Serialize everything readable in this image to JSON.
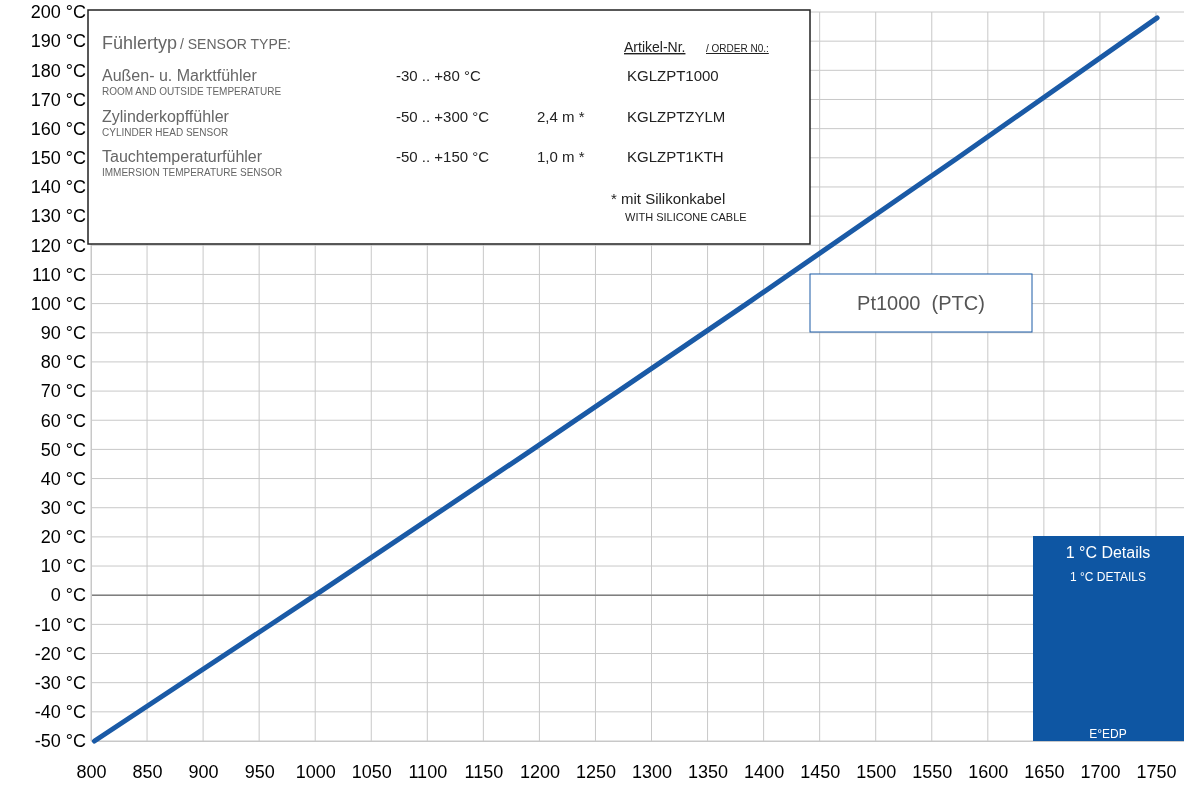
{
  "chart_data": {
    "type": "line",
    "x": [
      803.1,
      1000,
      1194,
      1385.1,
      1573.3,
      1751
    ],
    "series": [
      {
        "name": "Pt1000  (PTC)",
        "color": "#1a5aa6",
        "values": [
          -50,
          0,
          50,
          100,
          150,
          198
        ]
      }
    ],
    "xlim": [
      800,
      1775
    ],
    "xticks": [
      800,
      850,
      900,
      950,
      1000,
      1050,
      1100,
      1150,
      1200,
      1250,
      1300,
      1350,
      1400,
      1450,
      1500,
      1550,
      1600,
      1650,
      1700,
      1750
    ],
    "ylim": [
      -50,
      200
    ],
    "yticks": [
      {
        "value": -50,
        "label": "-50 °C"
      },
      {
        "value": -40,
        "label": "-40 °C"
      },
      {
        "value": -30,
        "label": "-30 °C"
      },
      {
        "value": -20,
        "label": "-20 °C"
      },
      {
        "value": -10,
        "label": "-10 °C"
      },
      {
        "value": 0,
        "label": "0 °C"
      },
      {
        "value": 10,
        "label": "10 °C"
      },
      {
        "value": 20,
        "label": "20 °C"
      },
      {
        "value": 30,
        "label": "30 °C"
      },
      {
        "value": 40,
        "label": "40 °C"
      },
      {
        "value": 50,
        "label": "50 °C"
      },
      {
        "value": 60,
        "label": "60 °C"
      },
      {
        "value": 70,
        "label": "70 °C"
      },
      {
        "value": 80,
        "label": "80 °C"
      },
      {
        "value": 90,
        "label": "90 °C"
      },
      {
        "value": 100,
        "label": "100 °C"
      },
      {
        "value": 110,
        "label": "110 °C"
      },
      {
        "value": 120,
        "label": "120 °C"
      },
      {
        "value": 130,
        "label": "130 °C"
      },
      {
        "value": 140,
        "label": "140 °C"
      },
      {
        "value": 150,
        "label": "150 °C"
      },
      {
        "value": 160,
        "label": "160 °C"
      },
      {
        "value": 170,
        "label": "170 °C"
      },
      {
        "value": 180,
        "label": "180 °C"
      },
      {
        "value": 190,
        "label": "190 °C"
      },
      {
        "value": 200,
        "label": "200 °C"
      }
    ],
    "grid": true,
    "ref_lines": [
      {
        "axis": "y",
        "value": 0,
        "color": "#7f7f7f"
      }
    ],
    "annotations": [
      "Fühlertyp",
      "/ SENSOR TYPE:",
      "Artikel-Nr.",
      "/ ORDER N0.:",
      "Außen- u. Marktfühler",
      "ROOM AND OUTSIDE TEMPERATURE",
      "-30 .. +80 °C",
      "KGLZPT1000",
      "Zylinderkopffühler",
      "CYLINDER HEAD SENSOR",
      "-50 .. +300 °C",
      "2,4 m *",
      "KGLZPTZYLM",
      "Tauchtemperaturfühler",
      "IMMERSION TEMPERATURE SENSOR",
      "-50 .. +150 °C",
      "1,0 m *",
      "KGLZPT1KTH",
      "* mit Silikonkabel",
      "WITH SILICONE CABLE",
      "1 °C Details",
      "1 °C DETAILS",
      "E°EDP"
    ]
  }
}
